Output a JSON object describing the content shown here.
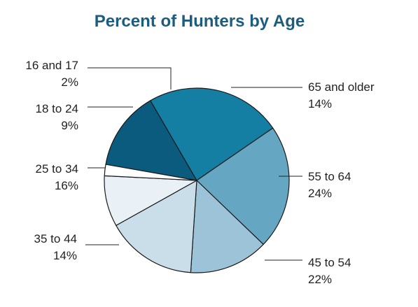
{
  "chart_data": {
    "type": "pie",
    "title": "Percent of Hunters by Age",
    "slices": [
      {
        "label": "65 and older",
        "value": 14,
        "value_label": "14%",
        "color": "#0b5b7e"
      },
      {
        "label": "55 to 64",
        "value": 24,
        "value_label": "24%",
        "color": "#157ea3"
      },
      {
        "label": "45 to 54",
        "value": 22,
        "value_label": "22%",
        "color": "#65a6c3"
      },
      {
        "label": "35 to 44",
        "value": 14,
        "value_label": "14%",
        "color": "#9dc3d8"
      },
      {
        "label": "25 to 34",
        "value": 16,
        "value_label": "16%",
        "color": "#cadeea"
      },
      {
        "label": "18 to 24",
        "value": 9,
        "value_label": "9%",
        "color": "#e9f1f7"
      },
      {
        "label": "16 and 17",
        "value": 2,
        "value_label": "2%",
        "color": "#ffffff"
      }
    ],
    "legend": "none"
  }
}
